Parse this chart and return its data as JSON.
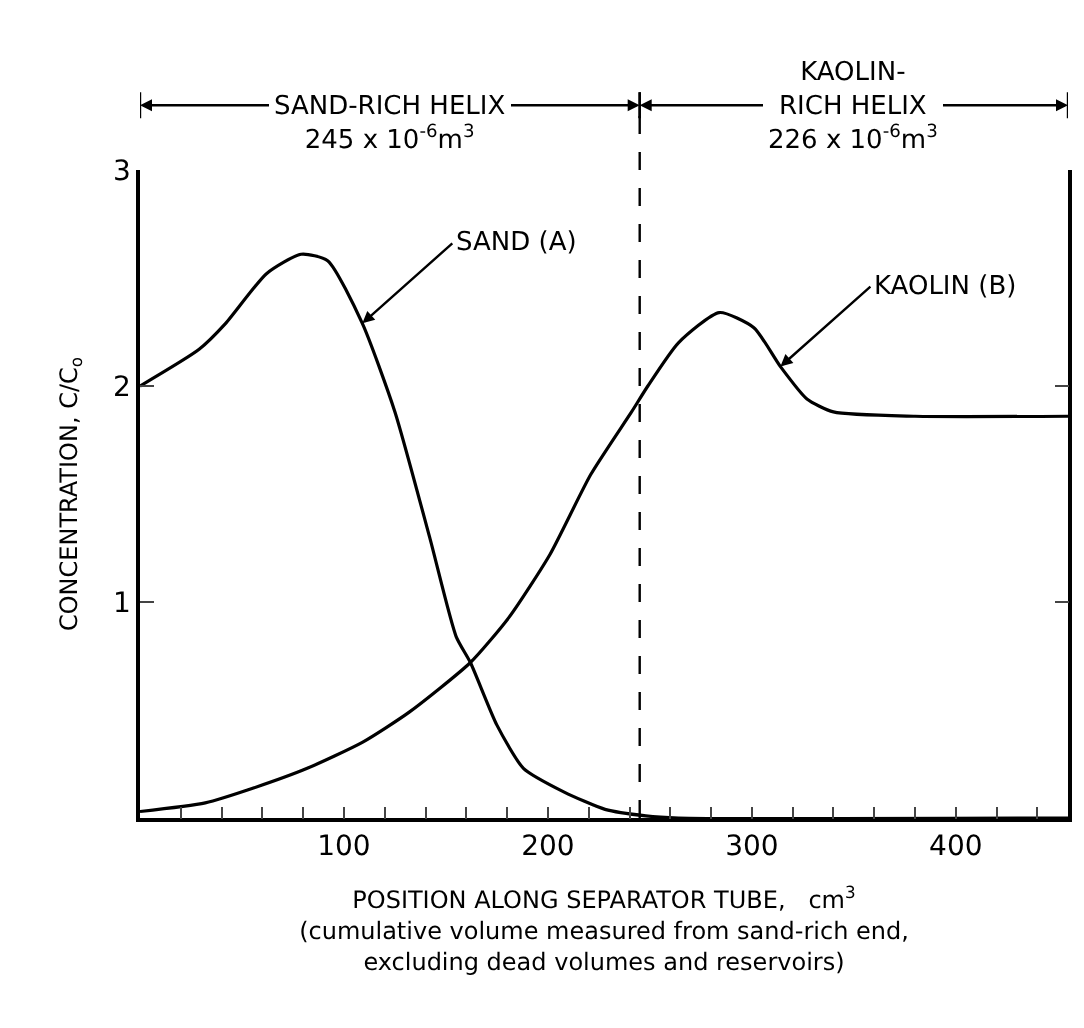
{
  "chart_data": {
    "type": "line",
    "xlabel": "POSITION ALONG SEPARATOR TUBE,   cm$^{3}$\n(cumulative volume measured from sand-rich end,\nexcluding dead volumes and reservoirs)",
    "ylabel": "CONCENTRATION, C/C$_{o}$",
    "series": [
      {
        "name": "SAND (A)",
        "color": "#000000",
        "x": [
          0,
          29,
          42,
          62,
          79,
          92,
          109,
          125,
          142,
          155,
          162,
          175,
          188,
          208,
          228,
          248,
          264,
          455
        ],
        "values": [
          2.0,
          2.17,
          2.29,
          2.52,
          2.61,
          2.58,
          2.29,
          1.88,
          1.3,
          0.84,
          0.72,
          0.43,
          0.23,
          0.12,
          0.04,
          0.01,
          0.0,
          0.0
        ]
      },
      {
        "name": "KAOLIN (B)",
        "color": "#000000",
        "x": [
          0,
          32,
          56,
          82,
          109,
          132,
          162,
          181,
          201,
          221,
          241,
          249,
          264,
          284,
          301,
          314,
          327,
          340,
          380,
          455
        ],
        "values": [
          0.03,
          0.07,
          0.14,
          0.23,
          0.35,
          0.49,
          0.72,
          0.93,
          1.22,
          1.59,
          1.88,
          2.0,
          2.2,
          2.34,
          2.27,
          2.09,
          1.94,
          1.88,
          1.86,
          1.86
        ]
      }
    ],
    "xlim": [
      0,
      455
    ],
    "ylim": [
      0,
      3
    ],
    "xticks": [
      {
        "value": 0,
        "label": null
      },
      {
        "value": 20,
        "label": null
      },
      {
        "value": 40,
        "label": null
      },
      {
        "value": 60,
        "label": null
      },
      {
        "value": 80,
        "label": null
      },
      100,
      {
        "value": 120,
        "label": null
      },
      {
        "value": 140,
        "label": null
      },
      {
        "value": 160,
        "label": null
      },
      {
        "value": 180,
        "label": null
      },
      200,
      {
        "value": 220,
        "label": null
      },
      {
        "value": 240,
        "label": null
      },
      {
        "value": 260,
        "label": null
      },
      {
        "value": 280,
        "label": null
      },
      300,
      {
        "value": 320,
        "label": null
      },
      {
        "value": 340,
        "label": null
      },
      {
        "value": 360,
        "label": null
      },
      {
        "value": 380,
        "label": null
      },
      400,
      {
        "value": 420,
        "label": null
      },
      {
        "value": 440,
        "label": null
      }
    ],
    "yticks": [
      {
        "value": 0,
        "label": null
      },
      1,
      2,
      3
    ],
    "ref_lines": [
      {
        "axis": "x",
        "value": 245,
        "label": null,
        "line_style": "dashed",
        "color": "#000000"
      }
    ],
    "annotations": [
      "SAND-RICH HELIX\n245 x 10$^{-6}$m$^{3}$",
      "KAOLIN-\nRICH HELIX\n226 x 10$^{-6}$m$^{3}$"
    ],
    "grid": false,
    "legend": false,
    "line_style": "solid",
    "marker": "none"
  }
}
